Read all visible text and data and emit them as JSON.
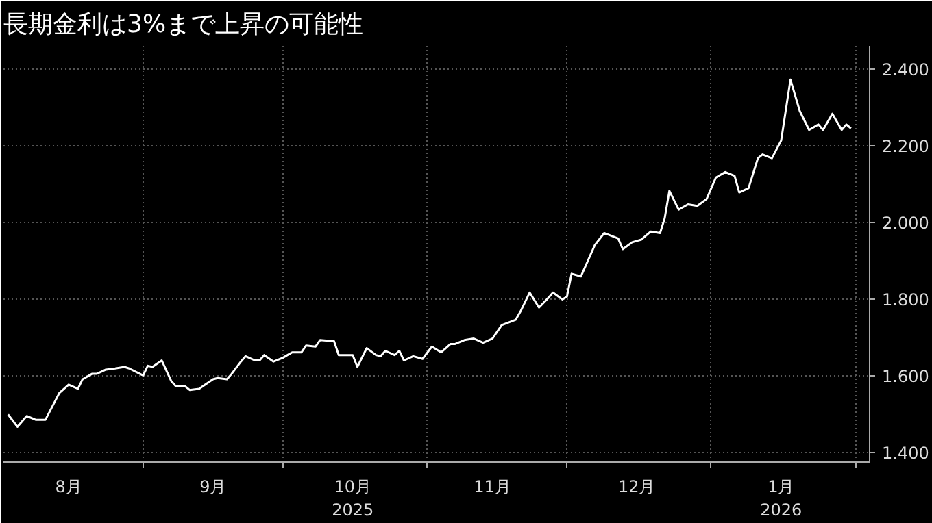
{
  "chart_data": {
    "type": "line",
    "title": "長期金利は3%まで上昇の可能性",
    "x": [
      "2025-08-03",
      "2025-08-05",
      "2025-08-07",
      "2025-08-09",
      "2025-08-11",
      "2025-08-14",
      "2025-08-16",
      "2025-08-18",
      "2025-08-19",
      "2025-08-21",
      "2025-08-22",
      "2025-08-24",
      "2025-08-26",
      "2025-08-28",
      "2025-08-29",
      "2025-09-01",
      "2025-09-02",
      "2025-09-03",
      "2025-09-05",
      "2025-09-07",
      "2025-09-08",
      "2025-09-10",
      "2025-09-11",
      "2025-09-13",
      "2025-09-16",
      "2025-09-17",
      "2025-09-19",
      "2025-09-20",
      "2025-09-22",
      "2025-09-23",
      "2025-09-25",
      "2025-09-26",
      "2025-09-27",
      "2025-09-29",
      "2025-10-01",
      "2025-10-02",
      "2025-10-03",
      "2025-10-05",
      "2025-10-06",
      "2025-10-08",
      "2025-10-09",
      "2025-10-12",
      "2025-10-13",
      "2025-10-16",
      "2025-10-17",
      "2025-10-19",
      "2025-10-21",
      "2025-10-22",
      "2025-10-23",
      "2025-10-25",
      "2025-10-26",
      "2025-10-27",
      "2025-10-29",
      "2025-10-31",
      "2025-11-02",
      "2025-11-04",
      "2025-11-06",
      "2025-11-07",
      "2025-11-09",
      "2025-11-11",
      "2025-11-13",
      "2025-11-15",
      "2025-11-17",
      "2025-11-20",
      "2025-11-21",
      "2025-11-23",
      "2025-11-25",
      "2025-11-27",
      "2025-11-28",
      "2025-11-30",
      "2025-12-01",
      "2025-12-02",
      "2025-12-04",
      "2025-12-07",
      "2025-12-09",
      "2025-12-12",
      "2025-12-13",
      "2025-12-15",
      "2025-12-17",
      "2025-12-19",
      "2025-12-21",
      "2025-12-22",
      "2025-12-23",
      "2025-12-25",
      "2025-12-27",
      "2025-12-29",
      "2025-12-31",
      "2026-01-02",
      "2026-01-04",
      "2026-01-06",
      "2026-01-07",
      "2026-01-09",
      "2026-01-11",
      "2026-01-12",
      "2026-01-14",
      "2026-01-16",
      "2026-01-18",
      "2026-01-20",
      "2026-01-22",
      "2026-01-24",
      "2026-01-25",
      "2026-01-27",
      "2026-01-29",
      "2026-01-30",
      "2026-01-31"
    ],
    "series": [
      {
        "color": "#ffffff",
        "values": [
          1.499,
          1.467,
          1.495,
          1.485,
          1.485,
          1.555,
          1.577,
          1.566,
          1.591,
          1.605,
          1.605,
          1.616,
          1.619,
          1.623,
          1.619,
          1.601,
          1.626,
          1.623,
          1.64,
          1.587,
          1.573,
          1.573,
          1.563,
          1.566,
          1.591,
          1.594,
          1.591,
          1.605,
          1.637,
          1.651,
          1.64,
          1.64,
          1.654,
          1.637,
          1.647,
          1.654,
          1.661,
          1.661,
          1.679,
          1.676,
          1.693,
          1.69,
          1.654,
          1.654,
          1.623,
          1.672,
          1.654,
          1.651,
          1.665,
          1.654,
          1.665,
          1.64,
          1.651,
          1.644,
          1.676,
          1.661,
          1.683,
          1.683,
          1.693,
          1.697,
          1.686,
          1.697,
          1.732,
          1.746,
          1.767,
          1.817,
          1.778,
          1.803,
          1.817,
          1.799,
          1.806,
          1.866,
          1.859,
          1.941,
          1.972,
          1.958,
          1.93,
          1.948,
          1.955,
          1.976,
          1.972,
          2.011,
          2.082,
          2.033,
          2.047,
          2.043,
          2.061,
          2.117,
          2.131,
          2.121,
          2.078,
          2.089,
          2.167,
          2.177,
          2.167,
          2.213,
          2.372,
          2.29,
          2.241,
          2.255,
          2.241,
          2.283,
          2.241,
          2.255,
          2.245
        ]
      }
    ],
    "xlim": [
      "2025-08-02",
      "2026-02-04"
    ],
    "xticks": [
      {
        "value": "2025-08-16",
        "label": "8月"
      },
      {
        "value": "2025-09-01",
        "label": null
      },
      {
        "value": "2025-09-16",
        "label": "9月"
      },
      {
        "value": "2025-10-01",
        "label": null
      },
      {
        "value": "2025-10-16",
        "label": "10月\n2025"
      },
      {
        "value": "2025-11-01",
        "label": null
      },
      {
        "value": "2025-11-15",
        "label": "11月"
      },
      {
        "value": "2025-12-01",
        "label": null
      },
      {
        "value": "2025-12-16",
        "label": "12月"
      },
      {
        "value": "2026-01-01",
        "label": null
      },
      {
        "value": "2026-01-16",
        "label": "1月\n2026"
      },
      {
        "value": "2026-02-01",
        "label": null
      }
    ],
    "ylim": [
      1.375,
      2.46
    ],
    "yticks": [
      {
        "value": 1.4,
        "label": "1.400"
      },
      {
        "value": 1.6,
        "label": "1.600"
      },
      {
        "value": 1.8,
        "label": "1.800"
      },
      {
        "value": 2.0,
        "label": "2.000"
      },
      {
        "value": 2.2,
        "label": "2.200"
      },
      {
        "value": 2.4,
        "label": "2.400"
      }
    ],
    "grid": true,
    "marker": "none",
    "line_style": "solid"
  }
}
